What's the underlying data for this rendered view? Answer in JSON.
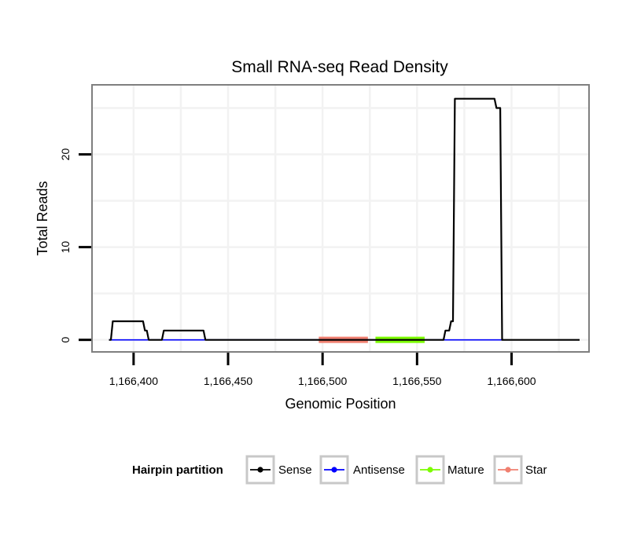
{
  "chart_data": {
    "type": "line",
    "title": "Small RNA-seq Read Density",
    "xlabel": "Genomic Position",
    "ylabel": "Total Reads",
    "xlim": [
      1166378,
      1166641
    ],
    "ylim": [
      -1.3,
      27.5
    ],
    "x_ticks": [
      1166400,
      1166450,
      1166500,
      1166550,
      1166600
    ],
    "x_tick_labels": [
      "1,166,400",
      "1,166,450",
      "1,166,500",
      "1,166,550",
      "1,166,600"
    ],
    "y_ticks": [
      0,
      10,
      20
    ],
    "y_tick_labels": [
      "0",
      "10",
      "20"
    ],
    "grid": true,
    "legend": {
      "title": "Hairpin partition",
      "position": "bottom",
      "entries": [
        {
          "label": "Sense",
          "color": "#000000"
        },
        {
          "label": "Antisense",
          "color": "#0000ff"
        },
        {
          "label": "Mature",
          "color": "#7cfc00"
        },
        {
          "label": "Star",
          "color": "#f08070"
        }
      ]
    },
    "series": [
      {
        "name": "Sense",
        "color": "#000000",
        "points": [
          [
            1166387,
            0
          ],
          [
            1166388,
            0
          ],
          [
            1166389,
            2
          ],
          [
            1166405,
            2
          ],
          [
            1166406,
            1
          ],
          [
            1166407,
            1
          ],
          [
            1166408,
            0
          ],
          [
            1166415,
            0
          ],
          [
            1166416,
            1
          ],
          [
            1166437,
            1
          ],
          [
            1166438,
            0
          ],
          [
            1166564,
            0
          ],
          [
            1166565,
            1
          ],
          [
            1166567,
            1
          ],
          [
            1166568,
            2
          ],
          [
            1166569,
            2
          ],
          [
            1166570,
            26
          ],
          [
            1166591,
            26
          ],
          [
            1166592,
            25
          ],
          [
            1166594,
            25
          ],
          [
            1166595,
            0
          ],
          [
            1166636,
            0
          ]
        ]
      },
      {
        "name": "Antisense",
        "color": "#0000ff",
        "points": [
          [
            1166387,
            0
          ],
          [
            1166595,
            0
          ]
        ]
      },
      {
        "name": "Mature",
        "color": "#7cfc00",
        "range": [
          1166528,
          1166554
        ]
      },
      {
        "name": "Star",
        "color": "#f08070",
        "range": [
          1166498,
          1166524
        ]
      }
    ]
  }
}
